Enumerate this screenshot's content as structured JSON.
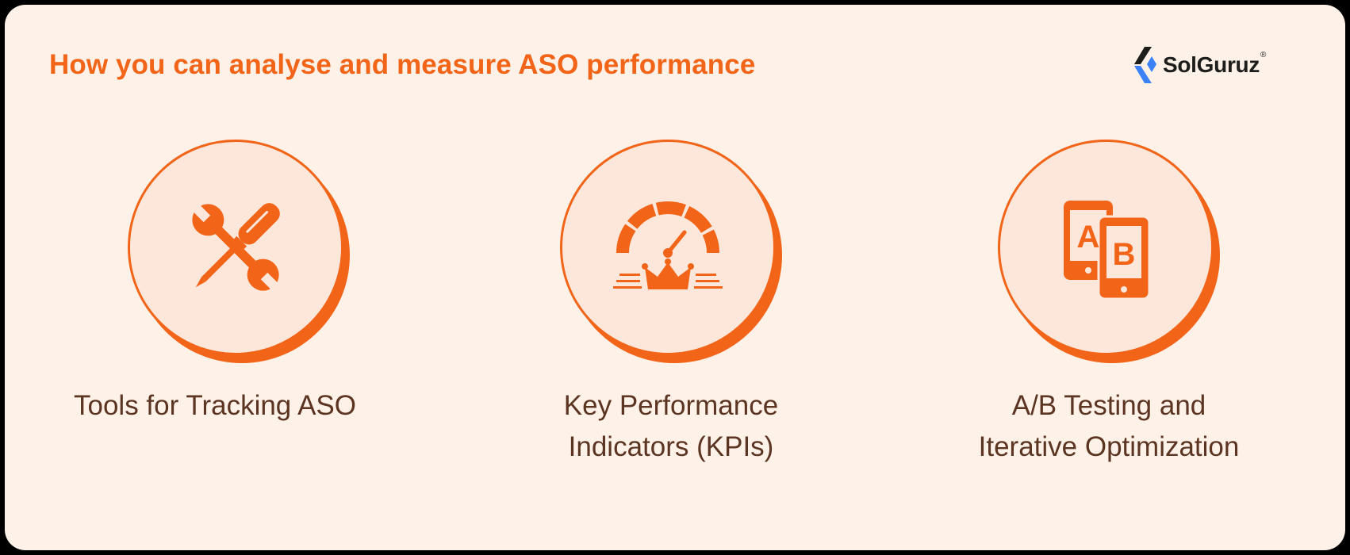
{
  "header": {
    "title": "How you can analyse and measure ASO performance"
  },
  "brand": {
    "name": "SolGuruz",
    "registered_mark": "®",
    "icon": "solguruz-logo-icon",
    "colors": {
      "primary": "#3b82f6",
      "dark": "#1d1d1b"
    }
  },
  "colors": {
    "accent": "#f26418",
    "card_background": "#fdf1e8",
    "circle_fill": "#fde7da",
    "label_text": "#5c3522"
  },
  "items": [
    {
      "label": "Tools for Tracking ASO",
      "icon": "tools-icon"
    },
    {
      "label_line1": "Key Performance",
      "label_line2": "Indicators (KPIs)",
      "icon": "kpi-gauge-icon"
    },
    {
      "label_line1": "A/B Testing and",
      "label_line2": "Iterative Optimization",
      "icon": "ab-testing-icon"
    }
  ]
}
